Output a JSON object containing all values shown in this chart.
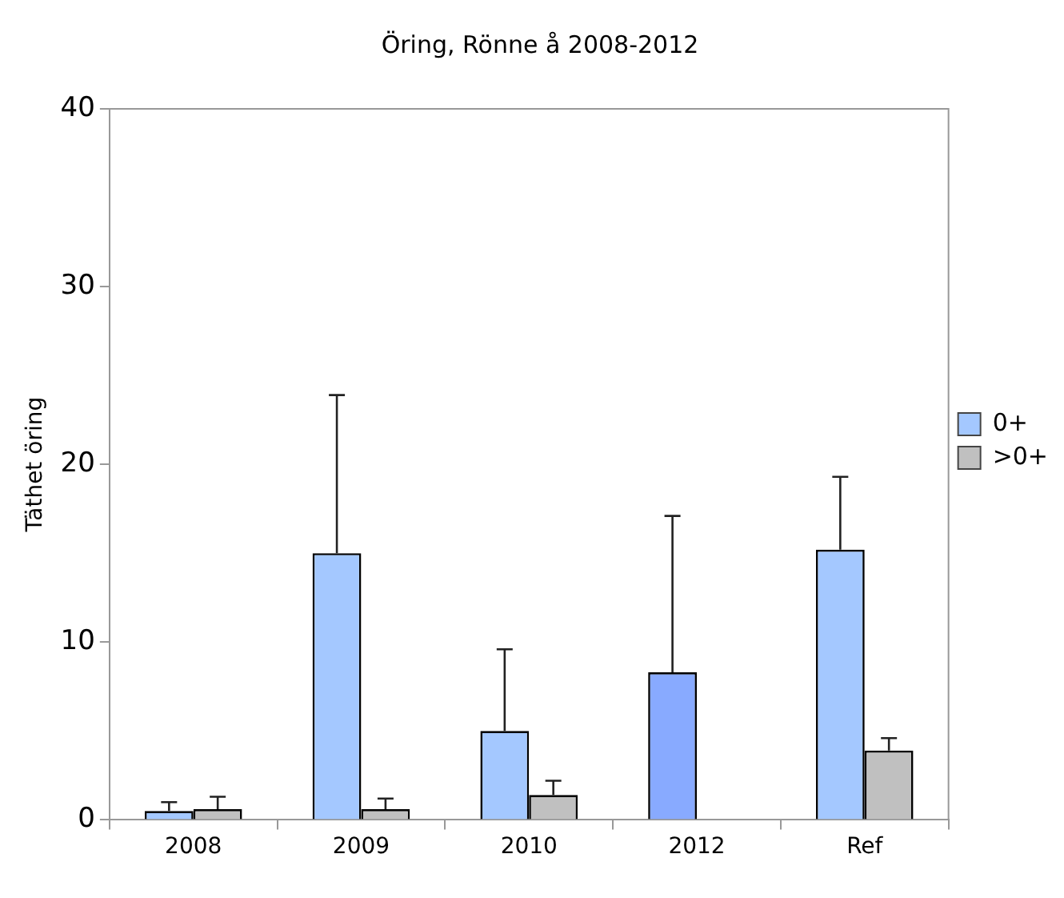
{
  "chart_data": {
    "type": "bar",
    "title": "Öring, Rönne å 2008-2012",
    "ylabel": "Täthet öring",
    "categories": [
      "2008",
      "2009",
      "2010",
      "2012",
      "Ref"
    ],
    "series": [
      {
        "name": "0+",
        "color": "#a4c8ff",
        "colors": [
          "#a4c8ff",
          "#a4c8ff",
          "#a4c8ff",
          "#88aaff",
          "#a4c8ff"
        ],
        "values": [
          0.5,
          15.0,
          5.0,
          8.3,
          15.2
        ],
        "errors": [
          [
            0.5,
            1.0
          ],
          [
            15.0,
            23.9
          ],
          [
            5.0,
            9.6
          ],
          [
            8.3,
            17.1
          ],
          [
            15.2,
            19.3
          ]
        ]
      },
      {
        "name": ">0+",
        "color": "#c0c0c0",
        "values": [
          0.6,
          0.6,
          1.4,
          0,
          3.9
        ],
        "errors": [
          [
            0.6,
            1.3
          ],
          [
            0.6,
            1.2
          ],
          [
            1.4,
            2.2
          ],
          null,
          [
            3.9,
            4.6
          ]
        ]
      }
    ],
    "ylim": [
      0,
      40
    ],
    "yticks": [
      0,
      10,
      20,
      30,
      40
    ],
    "grid": false,
    "legend": "right"
  }
}
